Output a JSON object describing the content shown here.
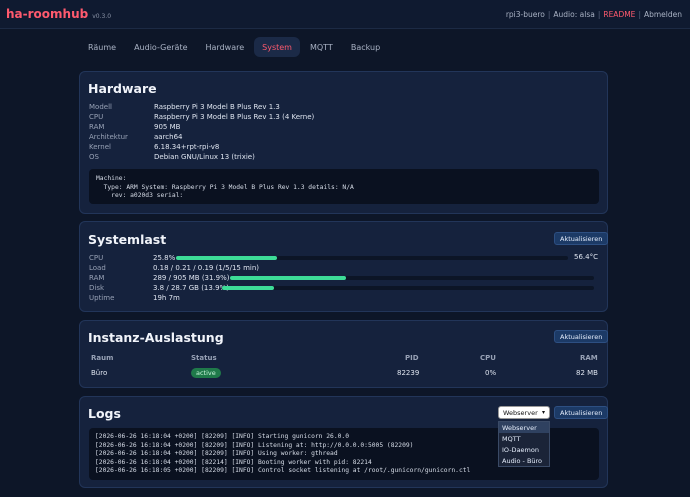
{
  "app": {
    "name": "ha-roomhub",
    "version": "v0.3.0"
  },
  "topbar": {
    "host": "rpi3-buero",
    "audio": "Audio: alsa",
    "readme": "README",
    "logout": "Abmelden",
    "sep": "|"
  },
  "tabs": [
    "Räume",
    "Audio-Geräte",
    "Hardware",
    "System",
    "MQTT",
    "Backup"
  ],
  "active_tab": "System",
  "hardware": {
    "title": "Hardware",
    "rows": [
      {
        "k": "Modell",
        "v": "Raspberry Pi 3 Model B Plus Rev 1.3"
      },
      {
        "k": "CPU",
        "v": "Raspberry Pi 3 Model B Plus Rev 1.3 (4 Kerne)"
      },
      {
        "k": "RAM",
        "v": "905 MB"
      },
      {
        "k": "Architektur",
        "v": "aarch64"
      },
      {
        "k": "Kernel",
        "v": "6.18.34+rpt-rpi-v8"
      },
      {
        "k": "OS",
        "v": "Debian GNU/Linux 13 (trixie)"
      }
    ],
    "machine": "Machine:\n  Type: ARM System: Raspberry Pi 3 Model B Plus Rev 1.3 details: N/A\n    rev: a020d3 serial:"
  },
  "systemlast": {
    "title": "Systemlast",
    "refresh": "Aktualisieren",
    "temp": "56.4°C",
    "cpu": {
      "k": "CPU",
      "v": "25.8%",
      "pct": 25.8
    },
    "load": {
      "k": "Load",
      "v": "0.18 / 0.21 / 0.19 (1/5/15 min)"
    },
    "ram": {
      "k": "RAM",
      "v": "289 / 905 MB (31.9%)",
      "pct": 31.9
    },
    "disk": {
      "k": "Disk",
      "v": "3.8 / 28.7 GB (13.9%)",
      "pct": 13.9
    },
    "uptime": {
      "k": "Uptime",
      "v": "19h 7m"
    }
  },
  "instanz": {
    "title": "Instanz-Auslastung",
    "refresh": "Aktualisieren",
    "headers": {
      "raum": "Raum",
      "status": "Status",
      "pid": "PID",
      "cpu": "CPU",
      "ram": "RAM"
    },
    "row": {
      "raum": "Büro",
      "status": "active",
      "pid": "82239",
      "cpu": "0%",
      "ram": "82 MB"
    }
  },
  "logs": {
    "title": "Logs",
    "refresh": "Aktualisieren",
    "select_value": "Webserver",
    "options": [
      "Webserver",
      "MQTT",
      "IO-Daemon",
      "Audio - Büro"
    ],
    "text": "[2026-06-26 16:18:04 +0200] [82209] [INFO] Starting gunicorn 26.0.0\n[2026-06-26 16:18:04 +0200] [82209] [INFO] Listening at: http://0.0.0.0:5005 (82209)\n[2026-06-26 16:18:04 +0200] [82209] [INFO] Using worker: gthread\n[2026-06-26 16:18:04 +0200] [82214] [INFO] Booting worker with pid: 82214\n[2026-06-26 16:18:05 +0200] [82209] [INFO] Control socket listening at /root/.gunicorn/gunicorn.ctl"
  },
  "colors": {
    "accent": "#ff5a6e",
    "bar": "#3ddc97",
    "bg": "#0d1628",
    "card": "#15223d"
  }
}
